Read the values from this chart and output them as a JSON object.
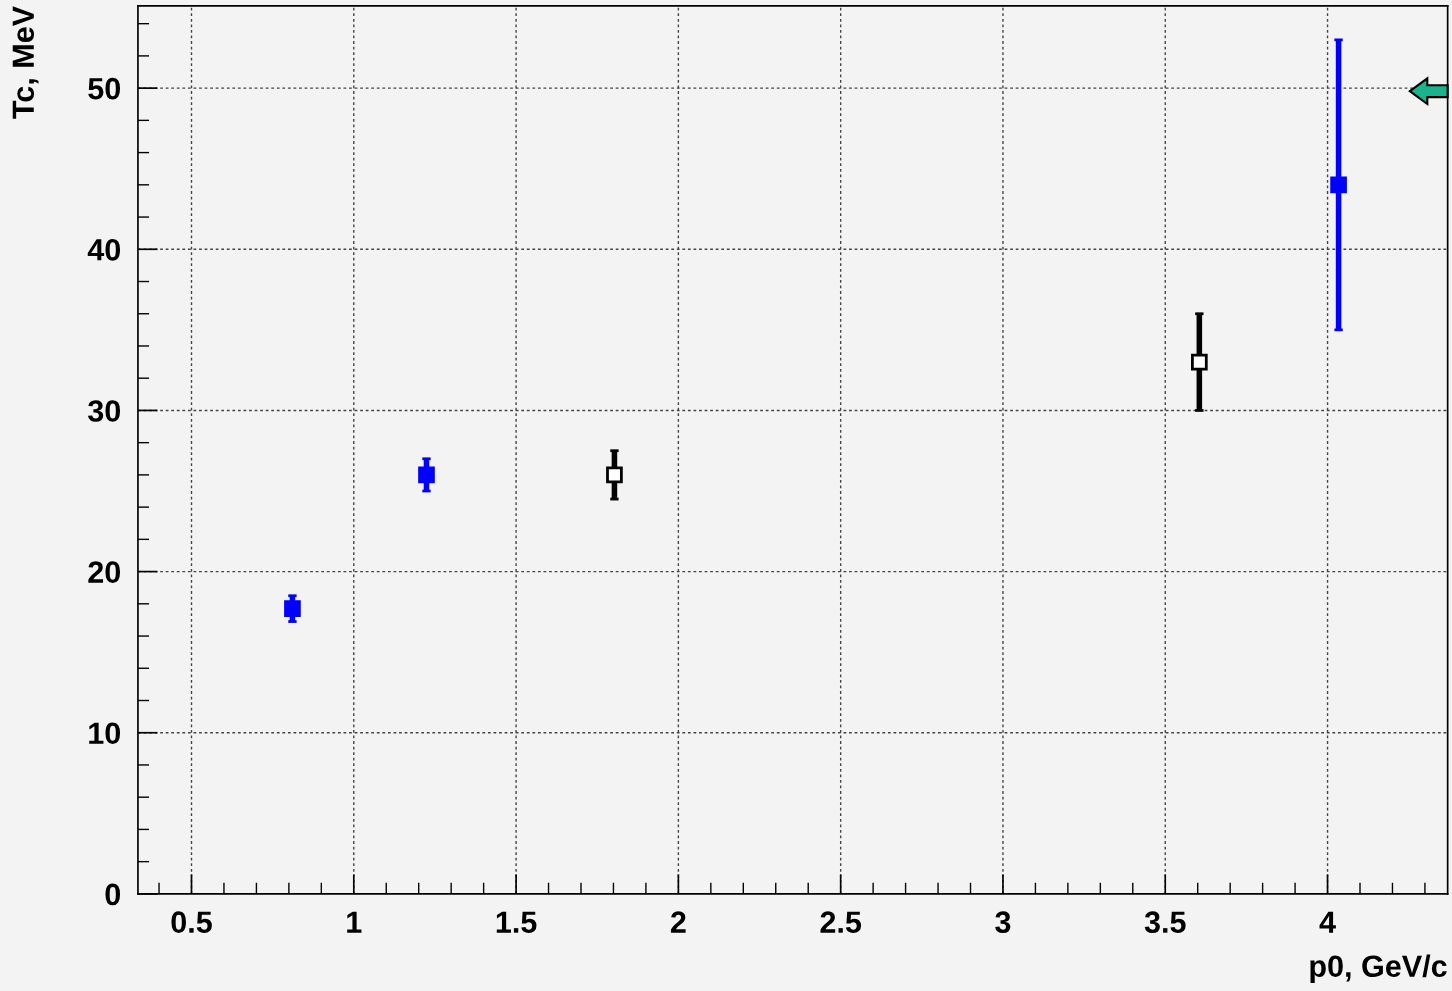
{
  "chart_data": {
    "type": "scatter",
    "xlabel": "p0, GeV/c",
    "ylabel": "Tc, MeV",
    "series": [
      {
        "color": "#0000ff",
        "x": [
          0.811,
          1.224,
          4.034
        ],
        "values": [
          17.7,
          26.0,
          44.0
        ],
        "errors": [
          0.8,
          1.0,
          9.0
        ]
      },
      {
        "color": "#000000",
        "x": [
          1.803,
          3.605
        ],
        "values": [
          26.0,
          33.0
        ],
        "errors": [
          1.5,
          3.0
        ]
      }
    ],
    "xlim": [
      0.335,
      4.37
    ],
    "ylim": [
      0,
      55.1
    ],
    "xticks": [
      0.5,
      1,
      1.5,
      2,
      2.5,
      3,
      3.5,
      4
    ],
    "yticks": [
      0,
      10,
      20,
      30,
      40,
      50
    ],
    "grid": true,
    "marker": "square"
  }
}
